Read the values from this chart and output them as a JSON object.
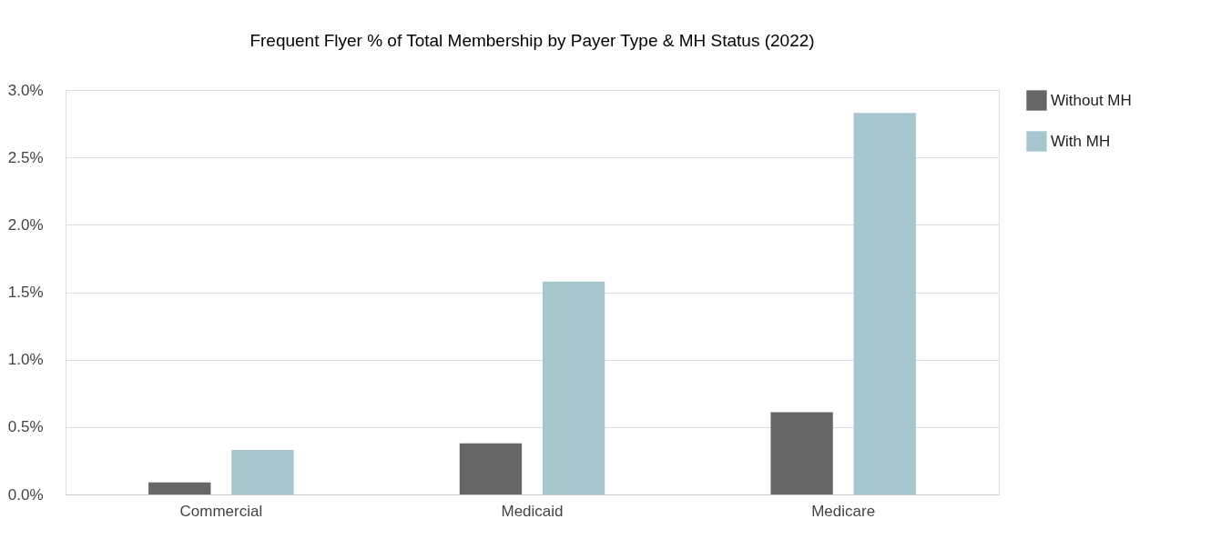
{
  "chart_data": {
    "type": "bar",
    "title": "Frequent Flyer % of Total Membership by Payer Type & MH Status (2022)",
    "categories": [
      "Commercial",
      "Medicaid",
      "Medicare"
    ],
    "series": [
      {
        "name": "Without MH",
        "color": "#666666",
        "values": [
          0.09,
          0.38,
          0.61
        ]
      },
      {
        "name": "With MH",
        "color": "#a7c7cf",
        "values": [
          0.33,
          1.58,
          2.83
        ]
      }
    ],
    "ylim": [
      0,
      3
    ],
    "yticks": [
      {
        "value": 0,
        "label": "0.0%"
      },
      {
        "value": 0.5,
        "label": "0.5%"
      },
      {
        "value": 1,
        "label": "1.0%"
      },
      {
        "value": 1.5,
        "label": "1.5%"
      },
      {
        "value": 2,
        "label": "2.0%"
      },
      {
        "value": 2.5,
        "label": "2.5%"
      },
      {
        "value": 3,
        "label": "3.0%"
      }
    ],
    "grid": "y",
    "legend": "right"
  }
}
